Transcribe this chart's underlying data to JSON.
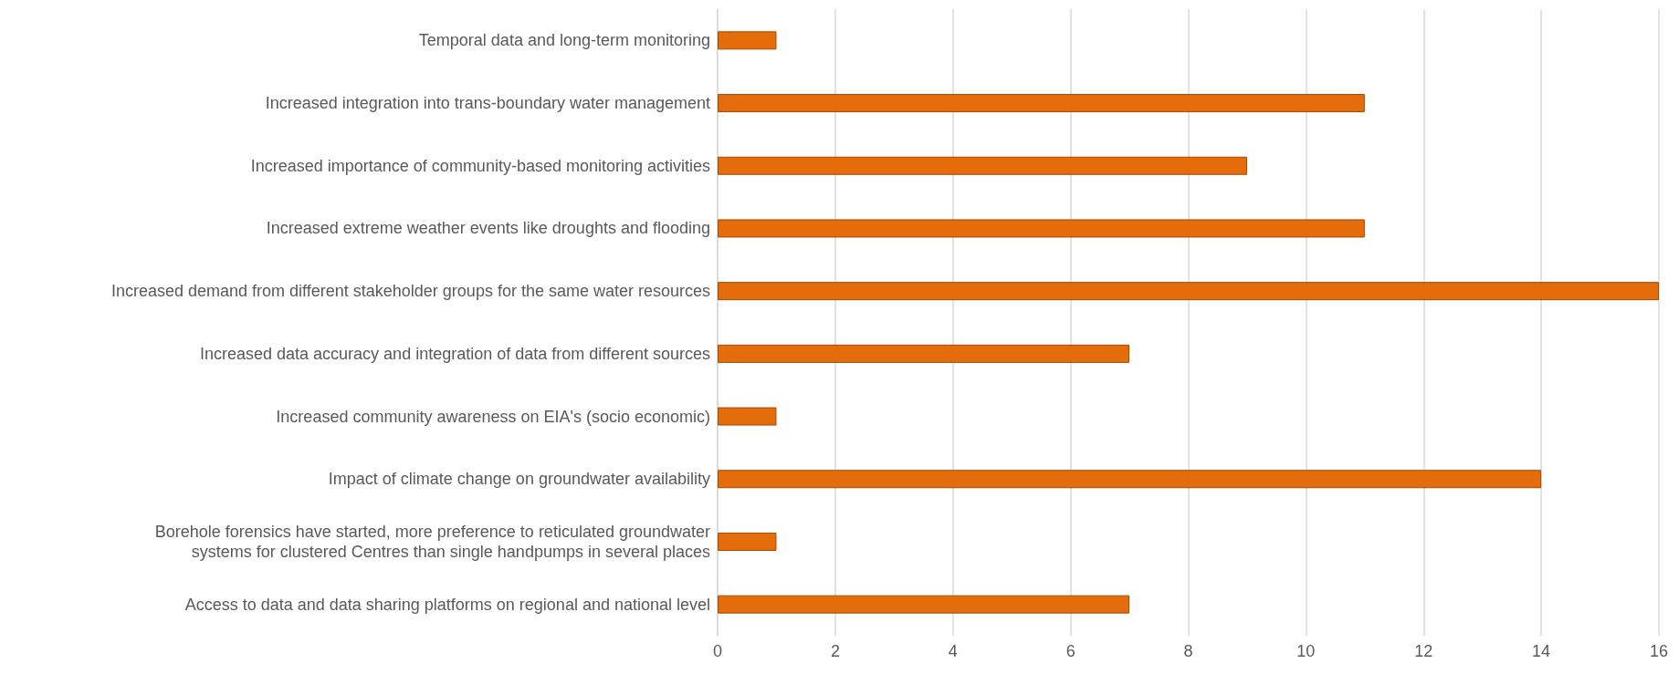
{
  "chart_data": {
    "type": "bar",
    "orientation": "horizontal",
    "categories": [
      "Temporal data and long-term monitoring",
      "Increased integration into trans-boundary water management",
      "Increased importance of community-based monitoring activities",
      "Increased extreme weather events like droughts and flooding",
      "Increased demand from different stakeholder groups for the same water resources",
      "Increased data accuracy and integration of data from different sources",
      "Increased community awareness on EIA's (socio economic)",
      "Impact of climate change on groundwater availability",
      "Borehole forensics have started, more preference to reticulated groundwater\nsystems for clustered Centres than single handpumps in several places",
      "Access to data and data sharing platforms on regional and national level"
    ],
    "values": [
      1,
      11,
      9,
      11,
      16,
      7,
      1,
      14,
      1,
      7
    ],
    "color": "#e46c0a",
    "xlim": [
      0,
      16
    ],
    "xticks": [
      0,
      2,
      4,
      6,
      8,
      10,
      12,
      14,
      16
    ],
    "grid": "x"
  }
}
